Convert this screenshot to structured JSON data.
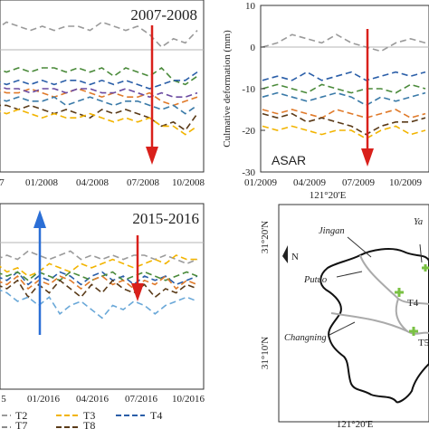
{
  "panels": {
    "top_left": {
      "title": "2007-2008",
      "x_tick_labels": [
        "7",
        "01/2008",
        "04/2008",
        "07/2008",
        "10/2008"
      ]
    },
    "top_right": {
      "satellite_label": "ASAR",
      "y_axis_label": "Culmative deformation (mm)",
      "y_tick_labels": [
        "10",
        "0",
        "-10",
        "-20",
        "-30"
      ],
      "x_tick_labels": [
        "01/2009",
        "04/2009",
        "07/2009",
        "10/2009"
      ]
    },
    "bottom_left": {
      "title": "2015-2016",
      "x_tick_labels": [
        "5",
        "01/2016",
        "04/2016",
        "07/2016",
        "10/2016"
      ]
    },
    "map": {
      "top_lon_label": "121°20'E",
      "bottom_lon_label": "121°20'E",
      "top_lat_label": "31°20'N",
      "bottom_lat_label": "31°10'N",
      "north_symbol": "N",
      "districts": [
        "Jingan",
        "Putuo",
        "Changning",
        "Ya"
      ],
      "points": [
        "T4",
        "T5"
      ]
    }
  },
  "legend": {
    "items": [
      {
        "label": "T2",
        "color": "#9a9a9a"
      },
      {
        "label": "T3",
        "color": "#f2b400"
      },
      {
        "label": "T4",
        "color": "#2a5ea8"
      },
      {
        "label": "T7",
        "color": "#8a8a8a"
      },
      {
        "label": "T8",
        "color": "#5a3a18"
      }
    ]
  },
  "colors": {
    "red_arrow": "#d9201b",
    "blue_arrow": "#2b6fd6",
    "reference_line": "#b5b5b5",
    "map_point": "#7ac143"
  },
  "chart_data": [
    {
      "type": "line",
      "panel": "top_left",
      "title": "2007-2008",
      "ylim": [
        -30,
        10
      ],
      "x": [
        "t1",
        "t2",
        "t3",
        "t4",
        "t5",
        "t6",
        "t7",
        "t8",
        "t9",
        "t10",
        "t11",
        "t12",
        "t13",
        "t14",
        "t15",
        "t16",
        "t17",
        "t18"
      ],
      "series": [
        {
          "color": "#9a9a9a",
          "values": [
            4,
            6,
            5,
            4,
            5,
            4,
            5,
            5,
            4,
            6,
            5,
            4,
            5,
            3,
            0,
            2,
            1,
            4
          ]
        },
        {
          "color": "#4a8a3a",
          "values": [
            -5,
            -6,
            -5,
            -6,
            -5,
            -5,
            -6,
            -5,
            -6,
            -5,
            -7,
            -5,
            -6,
            -7,
            -5,
            -8,
            -9,
            -7
          ]
        },
        {
          "color": "#2a5ea8",
          "values": [
            -8,
            -9,
            -8,
            -9,
            -8,
            -9,
            -8,
            -8,
            -9,
            -8,
            -9,
            -8,
            -9,
            -10,
            -9,
            -8,
            -8,
            -6
          ]
        },
        {
          "color": "#e07a2a",
          "values": [
            -10,
            -11,
            -11,
            -10,
            -11,
            -12,
            -11,
            -10,
            -11,
            -12,
            -11,
            -12,
            -12,
            -11,
            -13,
            -14,
            -13,
            -12
          ]
        },
        {
          "color": "#6a4aa0",
          "values": [
            -9,
            -10,
            -10,
            -11,
            -10,
            -10,
            -11,
            -10,
            -10,
            -11,
            -11,
            -10,
            -11,
            -12,
            -11,
            -12,
            -12,
            -11
          ]
        },
        {
          "color": "#3a7aa8",
          "values": [
            -12,
            -13,
            -12,
            -13,
            -13,
            -12,
            -14,
            -13,
            -12,
            -13,
            -14,
            -13,
            -13,
            -14,
            -15,
            -14,
            -16,
            -14
          ]
        },
        {
          "color": "#5a3a18",
          "values": [
            -14,
            -14,
            -15,
            -14,
            -15,
            -16,
            -15,
            -16,
            -17,
            -15,
            -16,
            -15,
            -16,
            -17,
            -19,
            -18,
            -20,
            -16
          ]
        },
        {
          "color": "#f2b400",
          "values": [
            -15,
            -16,
            -15,
            -16,
            -17,
            -16,
            -17,
            -17,
            -16,
            -17,
            -18,
            -17,
            -18,
            -17,
            -19,
            -19,
            -21,
            -19
          ]
        }
      ]
    },
    {
      "type": "line",
      "panel": "top_right",
      "ylabel": "Culmative deformation (mm)",
      "ylim": [
        -30,
        10
      ],
      "x": [
        "t1",
        "t2",
        "t3",
        "t4",
        "t5",
        "t6",
        "t7",
        "t8",
        "t9",
        "t10",
        "t11",
        "t12"
      ],
      "series": [
        {
          "color": "#9a9a9a",
          "values": [
            0,
            1,
            3,
            2,
            1,
            3,
            1,
            0,
            -1,
            1,
            2,
            1
          ]
        },
        {
          "color": "#2a5ea8",
          "values": [
            -8,
            -7,
            -8,
            -6,
            -8,
            -7,
            -6,
            -8,
            -7,
            -6,
            -7,
            -6
          ]
        },
        {
          "color": "#4a8a3a",
          "values": [
            -10,
            -9,
            -10,
            -11,
            -9,
            -10,
            -11,
            -10,
            -10,
            -11,
            -9,
            -10
          ]
        },
        {
          "color": "#3a7aa8",
          "values": [
            -12,
            -11,
            -12,
            -13,
            -12,
            -11,
            -12,
            -14,
            -12,
            -13,
            -12,
            -11
          ]
        },
        {
          "color": "#e07a2a",
          "values": [
            -15,
            -16,
            -15,
            -16,
            -17,
            -15,
            -16,
            -17,
            -16,
            -15,
            -17,
            -16
          ]
        },
        {
          "color": "#5a3a18",
          "values": [
            -16,
            -17,
            -16,
            -18,
            -17,
            -18,
            -19,
            -21,
            -19,
            -18,
            -18,
            -17
          ]
        },
        {
          "color": "#f2b400",
          "values": [
            -19,
            -20,
            -19,
            -20,
            -21,
            -20,
            -20,
            -22,
            -20,
            -19,
            -21,
            -20
          ]
        }
      ]
    },
    {
      "type": "line",
      "panel": "bottom_left",
      "title": "2015-2016",
      "ylim": [
        -30,
        10
      ],
      "x": [
        "t1",
        "t2",
        "t3",
        "t4",
        "t5",
        "t6",
        "t7",
        "t8",
        "t9",
        "t10",
        "t11",
        "t12",
        "t13",
        "t14",
        "t15",
        "t16",
        "t17",
        "t18",
        "t19",
        "t20"
      ],
      "series": [
        {
          "color": "#9a9a9a",
          "values": [
            1,
            2,
            1,
            3,
            2,
            1,
            2,
            3,
            1,
            2,
            1,
            2,
            1,
            2,
            2,
            1,
            2,
            1,
            0,
            1
          ]
        },
        {
          "color": "#f2b400",
          "values": [
            0,
            -2,
            -1,
            -3,
            -2,
            0,
            -1,
            -2,
            0,
            -1,
            0,
            1,
            0,
            -1,
            0,
            1,
            0,
            2,
            1,
            1
          ]
        },
        {
          "color": "#2a5ea8",
          "values": [
            -3,
            -4,
            -2,
            -5,
            -3,
            -4,
            -2,
            -3,
            -5,
            -3,
            -2,
            -4,
            -3,
            -5,
            -3,
            -4,
            -3,
            -5,
            -4,
            -3
          ]
        },
        {
          "color": "#4a8a3a",
          "values": [
            -2,
            -3,
            -2,
            -4,
            -2,
            -3,
            -4,
            -2,
            -3,
            -4,
            -3,
            -2,
            -4,
            -3,
            -2,
            -3,
            -4,
            -3,
            -2,
            -3
          ]
        },
        {
          "color": "#e07a2a",
          "values": [
            -4,
            -5,
            -3,
            -6,
            -4,
            -5,
            -3,
            -4,
            -6,
            -4,
            -3,
            -5,
            -4,
            -6,
            -4,
            -5,
            -3,
            -6,
            -4,
            -5
          ]
        },
        {
          "color": "#5a3a18",
          "values": [
            -5,
            -6,
            -4,
            -8,
            -5,
            -7,
            -4,
            -6,
            -8,
            -5,
            -7,
            -4,
            -6,
            -7,
            -5,
            -8,
            -6,
            -7,
            -5,
            -6
          ]
        },
        {
          "color": "#6aa8d8",
          "values": [
            -6,
            -7,
            -9,
            -8,
            -10,
            -8,
            -12,
            -10,
            -9,
            -11,
            -13,
            -10,
            -11,
            -9,
            -10,
            -12,
            -10,
            -9,
            -8,
            -9
          ]
        }
      ]
    }
  ]
}
